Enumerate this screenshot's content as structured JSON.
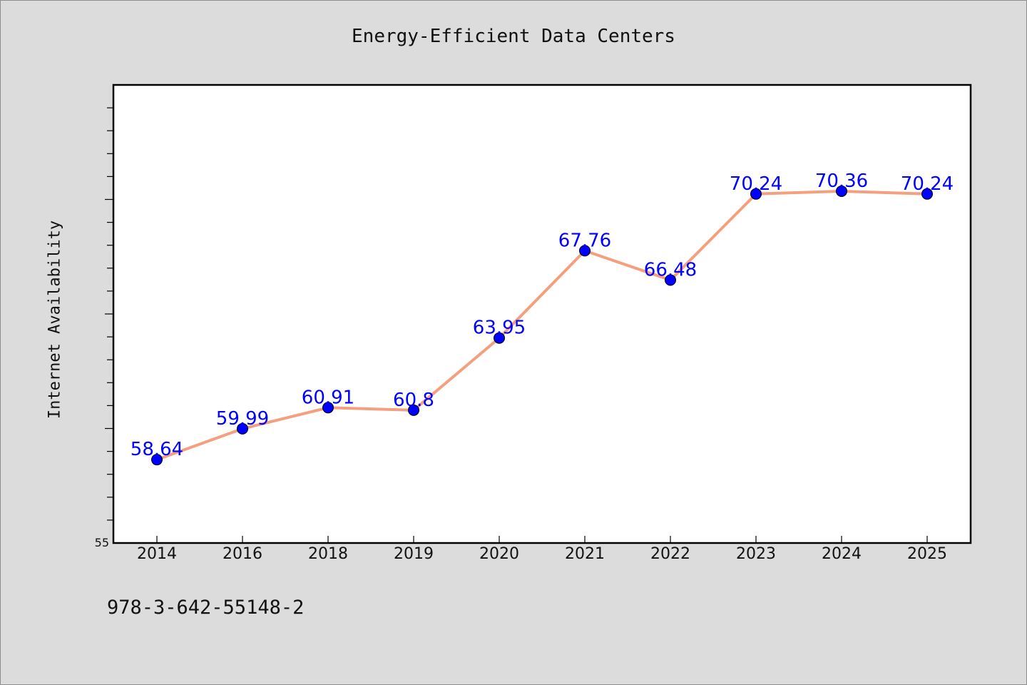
{
  "chart_data": {
    "type": "line",
    "title": "Energy-Efficient Data Centers",
    "xlabel": "",
    "ylabel": "Internet Availability",
    "categories": [
      "2014",
      "2016",
      "2018",
      "2019",
      "2020",
      "2021",
      "2022",
      "2023",
      "2024",
      "2025"
    ],
    "values": [
      58.64,
      59.99,
      60.91,
      60.8,
      63.95,
      67.76,
      66.48,
      70.24,
      70.36,
      70.24
    ],
    "data_labels": [
      "58.64",
      "59.99",
      "60.91",
      "60.8",
      "63.95",
      "67.76",
      "66.48",
      "70.24",
      "70.36",
      "70.24"
    ],
    "ylim": [
      55,
      75
    ],
    "y_tick_labels": [
      "55"
    ],
    "grid": false,
    "legend": "none",
    "line_color": "#f4a07e",
    "marker_color": "#0000ff",
    "label_color": "#0000ff"
  },
  "footer": {
    "text": "978-3-642-55148-2"
  }
}
